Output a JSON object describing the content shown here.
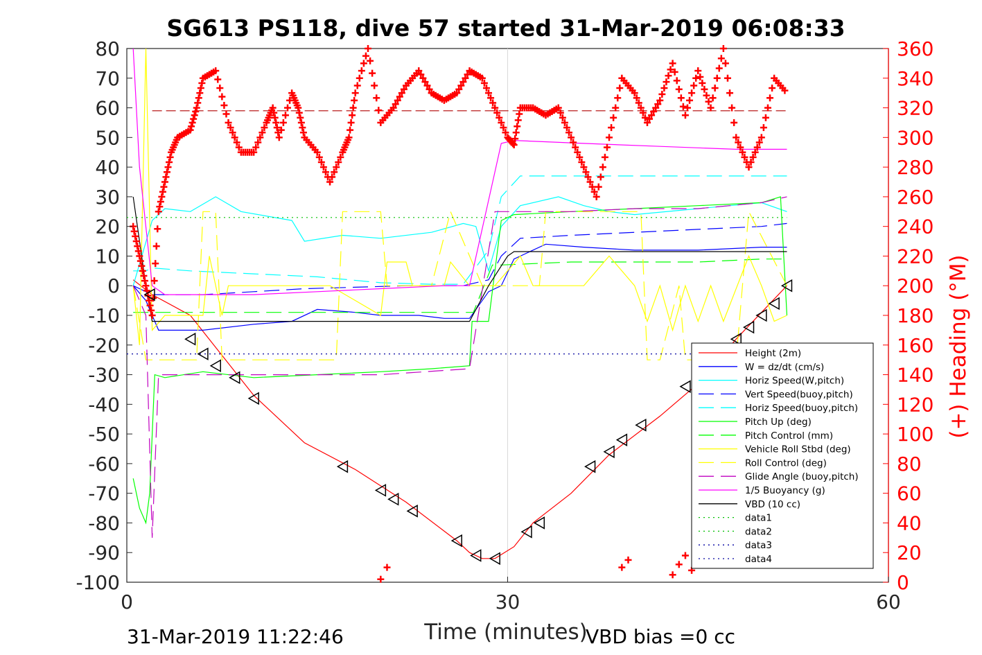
{
  "chart_data": {
    "type": "line",
    "title": "SG613 PS118, dive 57 started 31-Mar-2019 06:08:33",
    "xlabel": "Time (minutes)",
    "ylabel_left": "",
    "ylabel_right": "(+) Heading (°M)",
    "footer_left": "31-Mar-2019 11:22:46",
    "footer_right": "VBD bias =0 cc",
    "xlim": [
      0,
      60
    ],
    "ylim_left": [
      -100,
      80
    ],
    "ylim_right": [
      0,
      360
    ],
    "x_ticks": [
      "0",
      "30",
      "60"
    ],
    "y_ticks_left": [
      "80",
      "70",
      "60",
      "50",
      "40",
      "30",
      "20",
      "10",
      "0",
      "-10",
      "-20",
      "-30",
      "-40",
      "-50",
      "-60",
      "-70",
      "-80",
      "-90",
      "-100"
    ],
    "y_ticks_right": [
      "360",
      "340",
      "320",
      "300",
      "280",
      "260",
      "240",
      "220",
      "200",
      "180",
      "160",
      "140",
      "120",
      "100",
      "80",
      "60",
      "40",
      "20",
      "0"
    ],
    "grid": "x at 30 only",
    "legend_position": "bottom-right",
    "colors": {
      "height": "#ff0000",
      "w": "#0000ff",
      "horiz_speed": "#00ffff",
      "pitch": "#00ff00",
      "roll": "#ffff00",
      "glide": "#c000c0",
      "buoyancy": "#ff00ff",
      "vbd": "#000000",
      "data12": "#00c000",
      "data34": "#0000a0",
      "heading": "#ff0000"
    },
    "legend": [
      {
        "label": "Height (2m)",
        "color": "#ff0000",
        "style": "solid"
      },
      {
        "label": "W = dz/dt (cm/s)",
        "color": "#0000ff",
        "style": "solid"
      },
      {
        "label": "Horiz Speed(W,pitch)",
        "color": "#00ffff",
        "style": "solid"
      },
      {
        "label": "Vert Speed(buoy,pitch)",
        "color": "#0000ff",
        "style": "dashed"
      },
      {
        "label": "Horiz Speed(buoy,pitch)",
        "color": "#00ffff",
        "style": "dashed"
      },
      {
        "label": "Pitch Up (deg)",
        "color": "#00ff00",
        "style": "solid"
      },
      {
        "label": "Pitch Control (mm)",
        "color": "#00ff00",
        "style": "dashed"
      },
      {
        "label": "Vehicle Roll Stbd (deg)",
        "color": "#ffff00",
        "style": "solid"
      },
      {
        "label": "Roll Control (deg)",
        "color": "#ffff00",
        "style": "dashed"
      },
      {
        "label": "Glide Angle (buoy,pitch)",
        "color": "#c000c0",
        "style": "dashed"
      },
      {
        "label": "1/5 Buoyancy (g)",
        "color": "#ff00ff",
        "style": "solid"
      },
      {
        "label": "VBD (10 cc)",
        "color": "#000000",
        "style": "solid"
      },
      {
        "label": "data1",
        "color": "#00c000",
        "style": "dotted"
      },
      {
        "label": "data2",
        "color": "#00c000",
        "style": "dotted"
      },
      {
        "label": "data3",
        "color": "#0000a0",
        "style": "dotted"
      },
      {
        "label": "data4",
        "color": "#0000a0",
        "style": "dotted"
      }
    ],
    "series": [
      {
        "key": "height",
        "axis": "left",
        "x": [
          0.5,
          2,
          5,
          10,
          14,
          18,
          22,
          26,
          27,
          28,
          29,
          30.5,
          32,
          35,
          38,
          42,
          45,
          48,
          52
        ],
        "y": [
          2,
          -3,
          -10,
          -37,
          -53,
          -62,
          -73,
          -86,
          -90,
          -92,
          -92,
          -88,
          -80,
          -70,
          -57,
          -44,
          -33,
          -18,
          0
        ]
      },
      {
        "key": "w",
        "axis": "left",
        "x": [
          0.5,
          1.5,
          2.5,
          6,
          10,
          13,
          15,
          18,
          20,
          23,
          25,
          27,
          28.5,
          29.5,
          30.5,
          33,
          36,
          40,
          45,
          50,
          52
        ],
        "y": [
          0,
          -5,
          -15,
          -15,
          -13,
          -12,
          -8,
          -9,
          -10,
          -10,
          -11,
          -11,
          -2,
          0,
          9,
          14,
          13,
          12,
          12,
          13,
          13
        ]
      },
      {
        "key": "horiz_speed",
        "axis": "left",
        "x": [
          0.5,
          2,
          3,
          5,
          7,
          9,
          13,
          14,
          17,
          20,
          24,
          26.5,
          27.5,
          28.5,
          29.5,
          31,
          34,
          36,
          38,
          40,
          45,
          50,
          52
        ],
        "y": [
          0,
          22,
          26,
          25,
          30,
          25,
          22,
          15,
          17,
          16,
          18,
          21,
          20,
          5,
          20,
          27,
          30,
          27,
          25,
          24,
          26,
          28,
          25
        ]
      },
      {
        "key": "vert_speed_buoy",
        "axis": "left",
        "x": [
          0.5,
          2,
          6,
          10,
          14,
          18,
          22,
          26.5,
          28.5,
          29.5,
          31,
          35,
          40,
          45,
          50,
          52
        ],
        "y": [
          0,
          -3,
          -3,
          -2,
          -1,
          -0.5,
          0,
          0,
          2,
          10,
          16,
          17,
          18,
          19,
          20,
          21
        ]
      },
      {
        "key": "horiz_speed_buoy",
        "axis": "left",
        "x": [
          0.5,
          1.5,
          2,
          5,
          10,
          15,
          20,
          24,
          26.5,
          28.5,
          29.5,
          31,
          35,
          40,
          45,
          50,
          52
        ],
        "y": [
          5,
          5,
          6,
          5,
          4,
          3,
          1,
          0.5,
          0.5,
          12,
          30,
          37,
          37,
          37,
          37,
          37,
          37
        ]
      },
      {
        "key": "pitch",
        "axis": "left",
        "x": [
          0.5,
          1.0,
          1.5,
          1.8,
          2.2,
          3,
          6,
          10,
          15,
          20,
          24,
          27,
          27.2,
          28.5,
          29.5,
          30.5,
          35,
          40,
          45,
          50,
          51.5,
          52
        ],
        "y": [
          -65,
          -75,
          -80,
          -70,
          -30,
          -31,
          -29,
          -31,
          -30,
          -29,
          -28,
          -27,
          -12,
          -12,
          22,
          24,
          25,
          26,
          27,
          28,
          30,
          -10
        ]
      },
      {
        "key": "pitch_control",
        "axis": "left",
        "x": [
          0.5,
          2,
          6,
          10,
          15,
          20,
          25,
          27.3,
          28.8,
          29.5,
          35,
          40,
          45,
          50,
          52
        ],
        "y": [
          -9,
          -9,
          -9,
          -9,
          -9,
          -9,
          -9,
          -9,
          7,
          7,
          8,
          8,
          8,
          9,
          9
        ]
      },
      {
        "key": "vehicle_roll",
        "axis": "left",
        "x": [
          0.5,
          1,
          1.5,
          2,
          3,
          6,
          6.5,
          7.5,
          8,
          12,
          16,
          20,
          20.5,
          22,
          22.5,
          25,
          25.5,
          27,
          29,
          31,
          32,
          36,
          38,
          40,
          41,
          42,
          43,
          44,
          45,
          46,
          47,
          49,
          50,
          51,
          52
        ],
        "y": [
          0,
          -20,
          80,
          -15,
          -10,
          -10,
          10,
          -10,
          0,
          0,
          0,
          -10,
          8,
          8,
          0,
          0,
          8,
          0,
          0,
          10,
          0,
          0,
          10,
          0,
          -12,
          0,
          -15,
          0,
          -12,
          0,
          -12,
          10,
          0,
          -12,
          -10
        ]
      },
      {
        "key": "roll_control",
        "axis": "left",
        "x": [
          0.5,
          1.5,
          2,
          5.5,
          6,
          7,
          7.5,
          12,
          16.5,
          17,
          20,
          20.5,
          24,
          25.5,
          28,
          32.5,
          33,
          40.5,
          41,
          42,
          43.5,
          44,
          48,
          49,
          52
        ],
        "y": [
          0,
          -25,
          -25,
          -25,
          25,
          25,
          -25,
          -25,
          -25,
          25,
          25,
          0,
          0,
          25,
          0,
          0,
          25,
          25,
          -25,
          -25,
          0,
          -25,
          -25,
          25,
          0
        ]
      },
      {
        "key": "glide_angle",
        "axis": "left",
        "x": [
          0.5,
          1.5,
          2,
          2.5,
          5,
          10,
          15,
          20,
          27,
          29,
          35,
          40,
          45,
          50,
          52
        ],
        "y": [
          0,
          -10,
          -85,
          -30,
          -30,
          -30,
          -30,
          -30,
          -28,
          25,
          25,
          26,
          26,
          28,
          30
        ]
      },
      {
        "key": "buoyancy",
        "axis": "left",
        "x": [
          0.5,
          1,
          2,
          3,
          6,
          10,
          15,
          20,
          25,
          27,
          29.5,
          30.5,
          36,
          42,
          48,
          52
        ],
        "y": [
          80,
          40,
          0,
          -3,
          -3,
          -3,
          -2,
          -1,
          0,
          0,
          48,
          49,
          48,
          47,
          46,
          46
        ]
      },
      {
        "key": "vbd",
        "axis": "left",
        "x": [
          0.5,
          1.5,
          2,
          6,
          10,
          14,
          18,
          22,
          27,
          28.5,
          30,
          30.5,
          32,
          36,
          40,
          45,
          50,
          52
        ],
        "y": [
          30,
          0,
          -12,
          -12,
          -12,
          -12,
          -12,
          -12,
          -12,
          0,
          10,
          11.5,
          11.5,
          11.5,
          11.5,
          11.5,
          11.5,
          11.5
        ]
      },
      {
        "key": "data1",
        "axis": "left",
        "x": [
          0,
          52
        ],
        "y": [
          23,
          23
        ]
      },
      {
        "key": "data3",
        "axis": "left",
        "x": [
          0,
          52
        ],
        "y": [
          -23,
          -23
        ]
      }
    ],
    "reference_lines": {
      "heading_mean": {
        "axis": "right",
        "x": [
          2,
          52
        ],
        "y": [
          318,
          318
        ]
      }
    },
    "heading_points": {
      "axis": "right",
      "x": [
        0.5,
        1,
        1.5,
        2,
        2.5,
        3,
        3.5,
        4,
        5,
        5.5,
        6,
        7,
        8,
        9,
        10,
        11,
        11.5,
        12,
        13,
        13.5,
        14,
        15,
        16,
        17,
        17.5,
        18,
        19,
        20,
        21,
        22,
        23,
        24,
        25,
        26,
        27,
        28,
        29,
        30,
        30.5,
        31,
        32,
        33,
        34,
        35,
        36,
        37,
        38,
        39,
        40,
        41,
        42,
        43,
        44,
        45,
        46,
        47,
        48,
        49,
        50,
        51,
        52
      ],
      "y": [
        240,
        220,
        200,
        180,
        250,
        270,
        290,
        300,
        305,
        320,
        340,
        345,
        310,
        290,
        290,
        310,
        320,
        300,
        330,
        320,
        300,
        290,
        270,
        290,
        300,
        330,
        360,
        310,
        320,
        335,
        345,
        330,
        325,
        330,
        345,
        340,
        320,
        300,
        295,
        320,
        320,
        315,
        320,
        300,
        280,
        260,
        300,
        340,
        330,
        310,
        325,
        350,
        315,
        345,
        320,
        360,
        300,
        280,
        300,
        340,
        330
      ],
      "x_low": [
        20,
        20.5,
        39,
        39.5,
        43,
        43.5,
        44,
        44.5
      ],
      "y_low": [
        2,
        10,
        10,
        15,
        5,
        12,
        18,
        8
      ]
    },
    "markers": {
      "axis": "left",
      "x": [
        1.8,
        5,
        6,
        7,
        8.5,
        10,
        17,
        20,
        21,
        22.5,
        26,
        27.5,
        29,
        31.5,
        32.5,
        36.5,
        38,
        39,
        40.5,
        44,
        48,
        49,
        50,
        51,
        52
      ],
      "y": [
        -3,
        -18,
        -23,
        -27,
        -31,
        -38,
        -61,
        -69,
        -72,
        -76,
        -86,
        -91,
        -92,
        -83,
        -80,
        -61,
        -56,
        -52,
        -47,
        -34,
        -18,
        -14,
        -10,
        -6,
        0
      ]
    }
  }
}
